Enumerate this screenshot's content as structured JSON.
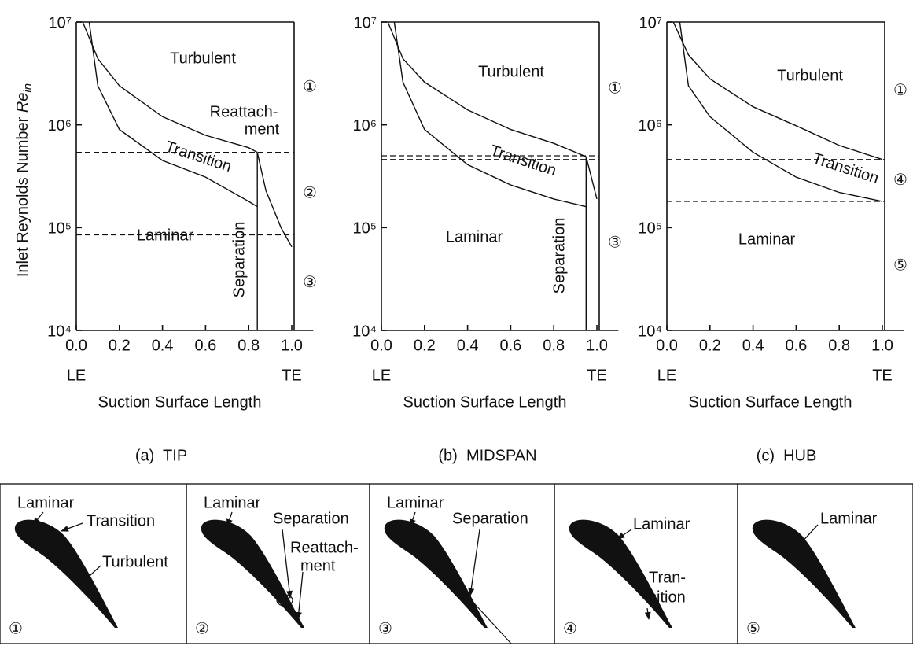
{
  "chart_data": [
    {
      "type": "line",
      "log_y": true,
      "caption": "(a)  TIP",
      "ylabel": "Inlet Reynolds Number ",
      "ylabel_symbol": "Re",
      "ylabel_subscript": "in",
      "xlabel": "Suction Surface Length",
      "x_end_labels": [
        "LE",
        "TE"
      ],
      "xlim": [
        0,
        1.1
      ],
      "ylim": [
        10000,
        10000000
      ],
      "xticks": [
        {
          "value": 0,
          "label": "0.0"
        },
        {
          "value": 0.2,
          "label": "0.2"
        },
        {
          "value": 0.4,
          "label": "0.4"
        },
        {
          "value": 0.6,
          "label": "0.6"
        },
        {
          "value": 0.8,
          "label": "0.8"
        },
        {
          "value": 1,
          "label": "1.0"
        }
      ],
      "yticks": [
        {
          "value": 10000,
          "label": "10⁴"
        },
        {
          "value": 100000,
          "label": "10⁵"
        },
        {
          "value": 1000000,
          "label": "10⁶"
        },
        {
          "value": 10000000,
          "label": "10⁷"
        }
      ],
      "thresholds": [
        540000,
        85000
      ],
      "regimes": [
        {
          "label": "①",
          "lower": 540000
        },
        {
          "label": "②",
          "lower": 85000
        },
        {
          "label": "③",
          "lower": 10000
        }
      ],
      "series": [
        {
          "color": "#111111",
          "x": [
            0.03,
            0.1,
            0.2,
            0.4,
            0.6,
            0.8,
            0.84
          ],
          "values": [
            10000000,
            4400000,
            2400000,
            1200000,
            790000,
            600000,
            540000
          ]
        },
        {
          "color": "#111111",
          "x": [
            0.06,
            0.1,
            0.2,
            0.4,
            0.6,
            0.8,
            0.84
          ],
          "values": [
            10000000,
            2400000,
            900000,
            450000,
            310000,
            180000,
            160000
          ]
        },
        {
          "color": "#111111",
          "x": [
            0.84,
            0.84
          ],
          "values": [
            10000,
            540000
          ]
        },
        {
          "color": "#111111",
          "x": [
            0.84,
            0.88,
            0.95,
            1.0
          ],
          "values": [
            540000,
            230000,
            100000,
            65000
          ]
        }
      ],
      "annotations": [
        "Turbulent",
        "Transition",
        "Laminar",
        "Separation",
        "Reattach-",
        "ment"
      ]
    },
    {
      "type": "line",
      "log_y": true,
      "caption": "(b)  MIDSPAN",
      "xlabel": "Suction Surface Length",
      "x_end_labels": [
        "LE",
        "TE"
      ],
      "xlim": [
        0,
        1.1
      ],
      "ylim": [
        10000,
        10000000
      ],
      "xticks": [
        {
          "value": 0,
          "label": "0.0"
        },
        {
          "value": 0.2,
          "label": "0.2"
        },
        {
          "value": 0.4,
          "label": "0.4"
        },
        {
          "value": 0.6,
          "label": "0.6"
        },
        {
          "value": 0.8,
          "label": "0.8"
        },
        {
          "value": 1,
          "label": "1.0"
        }
      ],
      "yticks": [
        {
          "value": 10000,
          "label": "10⁴"
        },
        {
          "value": 100000,
          "label": "10⁵"
        },
        {
          "value": 1000000,
          "label": "10⁶"
        },
        {
          "value": 10000000,
          "label": "10⁷"
        }
      ],
      "thresholds": [
        500000,
        460000
      ],
      "regimes": [
        {
          "label": "①",
          "lower": 500000
        },
        {
          "label": "③",
          "lower": 10000
        }
      ],
      "series": [
        {
          "color": "#111111",
          "x": [
            0.03,
            0.1,
            0.2,
            0.4,
            0.6,
            0.8,
            0.95
          ],
          "values": [
            10000000,
            4400000,
            2600000,
            1400000,
            900000,
            660000,
            490000
          ]
        },
        {
          "color": "#111111",
          "x": [
            0.06,
            0.1,
            0.2,
            0.4,
            0.6,
            0.8,
            0.95
          ],
          "values": [
            10000000,
            2600000,
            900000,
            410000,
            260000,
            190000,
            160000
          ]
        },
        {
          "color": "#111111",
          "x": [
            0.95,
            0.95
          ],
          "values": [
            10000,
            490000
          ]
        },
        {
          "color": "#111111",
          "x": [
            0.95,
            1.0
          ],
          "values": [
            490000,
            190000
          ]
        }
      ],
      "annotations": [
        "Turbulent",
        "Transition",
        "Laminar",
        "Separation"
      ]
    },
    {
      "type": "line",
      "log_y": true,
      "caption": "(c)  HUB",
      "xlabel": "Suction Surface Length",
      "x_end_labels": [
        "LE",
        "TE"
      ],
      "xlim": [
        0,
        1.1
      ],
      "ylim": [
        10000,
        10000000
      ],
      "xticks": [
        {
          "value": 0,
          "label": "0.0"
        },
        {
          "value": 0.2,
          "label": "0.2"
        },
        {
          "value": 0.4,
          "label": "0.4"
        },
        {
          "value": 0.6,
          "label": "0.6"
        },
        {
          "value": 0.8,
          "label": "0.8"
        },
        {
          "value": 1,
          "label": "1.0"
        }
      ],
      "yticks": [
        {
          "value": 10000,
          "label": "10⁴"
        },
        {
          "value": 100000,
          "label": "10⁵"
        },
        {
          "value": 1000000,
          "label": "10⁶"
        },
        {
          "value": 10000000,
          "label": "10⁷"
        }
      ],
      "thresholds": [
        460000,
        180000
      ],
      "regimes": [
        {
          "label": "①",
          "lower": 460000
        },
        {
          "label": "④",
          "lower": 180000
        },
        {
          "label": "⑤",
          "lower": 10000
        }
      ],
      "series": [
        {
          "color": "#111111",
          "x": [
            0.03,
            0.1,
            0.2,
            0.4,
            0.6,
            0.8,
            1.0
          ],
          "values": [
            10000000,
            4800000,
            2800000,
            1500000,
            980000,
            630000,
            460000
          ]
        },
        {
          "color": "#111111",
          "x": [
            0.06,
            0.1,
            0.2,
            0.4,
            0.6,
            0.8,
            1.0
          ],
          "values": [
            10000000,
            2400000,
            1200000,
            540000,
            310000,
            220000,
            180000
          ]
        }
      ],
      "annotations": [
        "Turbulent",
        "Transition",
        "Laminar"
      ]
    }
  ],
  "panels": [
    {
      "number": "①",
      "labels": [
        "Laminar",
        "Transition",
        "Turbulent"
      ]
    },
    {
      "number": "②",
      "labels": [
        "Laminar",
        "Separation",
        "Reattach-",
        "ment"
      ]
    },
    {
      "number": "③",
      "labels": [
        "Laminar",
        "Separation"
      ]
    },
    {
      "number": "④",
      "labels": [
        "Laminar",
        "Tran-",
        "sition"
      ]
    },
    {
      "number": "⑤",
      "labels": [
        "Laminar"
      ]
    }
  ]
}
